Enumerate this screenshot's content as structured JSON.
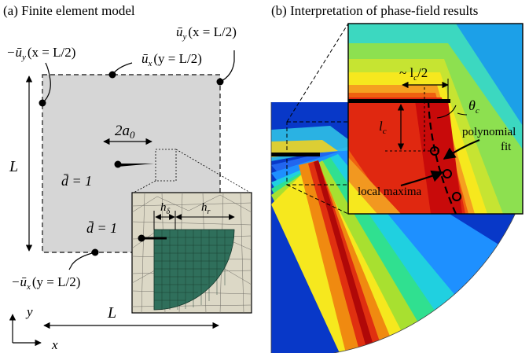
{
  "panel_a": {
    "title": "(a) Finite element model",
    "bc_uy_left": {
      "sym": "−ū",
      "sub": "y",
      "arg": "(x = L/2)"
    },
    "bc_uy_right": {
      "sym": "ū",
      "sub": "y",
      "arg": "(x = L/2)"
    },
    "bc_ux_top": {
      "sym": "ū",
      "sub": "x",
      "arg": "(y = L/2)"
    },
    "bc_ux_bottom": {
      "sym": "−ū",
      "sub": "x",
      "arg": "(y = L/2)"
    },
    "crack_length": {
      "sym": "2a",
      "sub": "0"
    },
    "height_label": "L",
    "width_label": "L",
    "damage_label": "d̄ = 1",
    "inset_damage_label": "d̄ = 1",
    "h_delta": {
      "sym": "h",
      "sub": "δ"
    },
    "h_r": {
      "sym": "h",
      "sub": "r"
    },
    "axis_x": "x",
    "axis_y": "y"
  },
  "panel_b": {
    "title": "(b) Interpretation of phase-field results",
    "lc_half": {
      "sym": "~ l",
      "sub": "c",
      "tail": "/2"
    },
    "theta": {
      "sym": "θ",
      "sub": "c"
    },
    "lc": {
      "sym": "l",
      "sub": "c"
    },
    "polynomial": "polynomial",
    "fit": "fit",
    "local_maxima": "local maxima"
  },
  "colors": {
    "domain_fill": "#d6d6d6",
    "mesh_fill": "#2f6f5b",
    "mesh_bg": "#dcd8c6",
    "crack_band": "#d01010"
  }
}
